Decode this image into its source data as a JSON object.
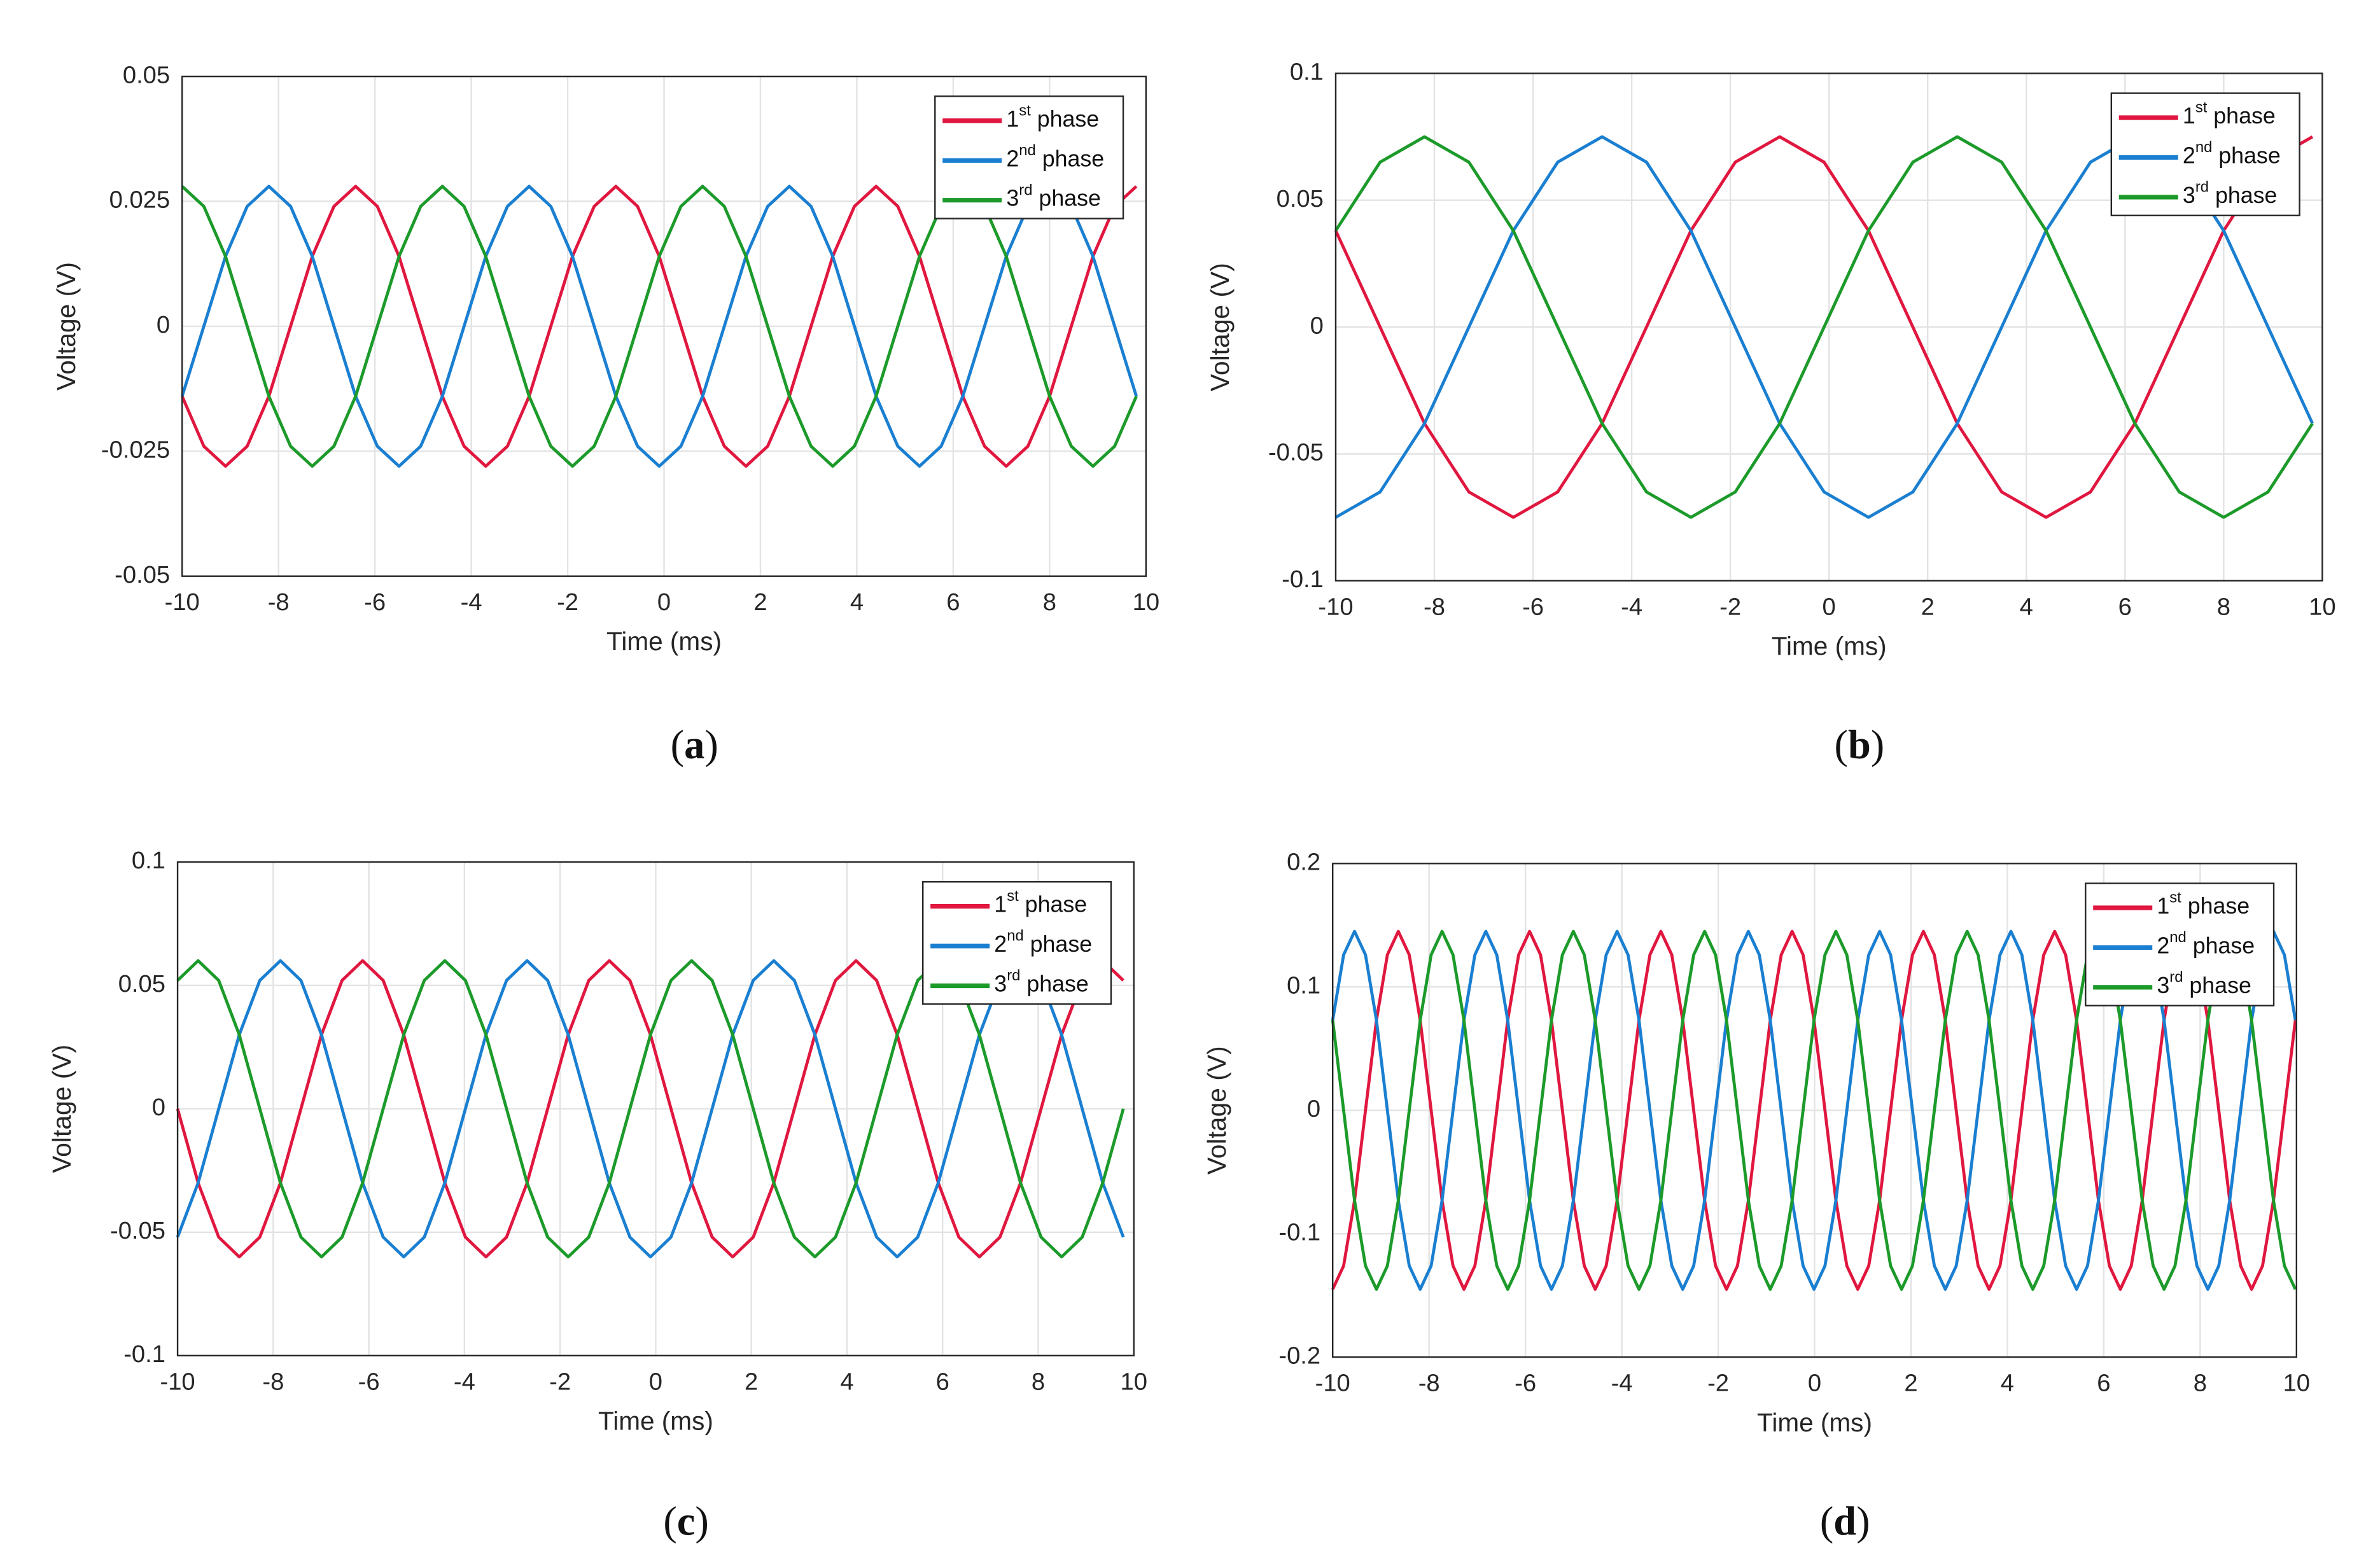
{
  "chart_data": [
    {
      "type": "line",
      "caption": "(a)",
      "xlabel": "Time (ms)",
      "ylabel": "Voltage (V)",
      "x": [
        -10,
        -9.55,
        -9.1,
        -8.65,
        -8.2,
        -7.75,
        -7.3,
        -6.85,
        -6.4,
        -5.95,
        -5.5,
        -5.05,
        -4.6,
        -4.15,
        -3.7,
        -3.25,
        -2.8,
        -2.35,
        -1.9,
        -1.45,
        -1,
        -0.55,
        -0.1,
        0.35,
        0.8,
        1.25,
        1.7,
        2.15,
        2.6,
        3.05,
        3.5,
        3.95,
        4.4,
        4.85,
        5.3,
        5.75,
        6.2,
        6.65,
        7.1,
        7.55,
        8,
        8.45,
        8.9,
        9.35,
        9.8
      ],
      "series": [
        {
          "name": "1st phase",
          "color": "#e0173f",
          "values": [
            -0.014,
            -0.024,
            -0.028,
            -0.024,
            -0.014,
            0,
            0.014,
            0.024,
            0.028,
            0.024,
            0.014,
            0,
            -0.014,
            -0.024,
            -0.028,
            -0.024,
            -0.014,
            0,
            0.014,
            0.024,
            0.028,
            0.024,
            0.014,
            0,
            -0.014,
            -0.024,
            -0.028,
            -0.024,
            -0.014,
            0,
            0.014,
            0.024,
            0.028,
            0.024,
            0.014,
            0,
            -0.014,
            -0.024,
            -0.028,
            -0.024,
            -0.014,
            0,
            0.014,
            0.024,
            0.028
          ]
        },
        {
          "name": "2nd phase",
          "color": "#1a7fd1",
          "values": [
            -0.014,
            0,
            0.014,
            0.024,
            0.028,
            0.024,
            0.014,
            0,
            -0.014,
            -0.024,
            -0.028,
            -0.024,
            -0.014,
            0,
            0.014,
            0.024,
            0.028,
            0.024,
            0.014,
            0,
            -0.014,
            -0.024,
            -0.028,
            -0.024,
            -0.014,
            0,
            0.014,
            0.024,
            0.028,
            0.024,
            0.014,
            0,
            -0.014,
            -0.024,
            -0.028,
            -0.024,
            -0.014,
            0,
            0.014,
            0.024,
            0.028,
            0.024,
            0.014,
            0,
            -0.014
          ]
        },
        {
          "name": "3rd phase",
          "color": "#1c9a2a",
          "values": [
            0.028,
            0.024,
            0.014,
            0,
            -0.014,
            -0.024,
            -0.028,
            -0.024,
            -0.014,
            0,
            0.014,
            0.024,
            0.028,
            0.024,
            0.014,
            0,
            -0.014,
            -0.024,
            -0.028,
            -0.024,
            -0.014,
            0,
            0.014,
            0.024,
            0.028,
            0.024,
            0.014,
            0,
            -0.014,
            -0.024,
            -0.028,
            -0.024,
            -0.014,
            0,
            0.014,
            0.024,
            0.028,
            0.024,
            0.014,
            0,
            -0.014,
            -0.024,
            -0.028,
            -0.024,
            -0.014
          ]
        }
      ],
      "xlim": [
        -10,
        10
      ],
      "ylim": [
        -0.05,
        0.05
      ],
      "xticks": [
        -10,
        -8,
        -6,
        -4,
        -2,
        0,
        2,
        4,
        6,
        8,
        10
      ],
      "yticks": [
        -0.05,
        -0.025,
        0,
        0.025,
        0.05
      ],
      "grid": true,
      "legend": "upper right"
    },
    {
      "type": "line",
      "caption": "(b)",
      "xlabel": "Time (ms)",
      "ylabel": "Voltage (V)",
      "x": [
        -10,
        -9.1,
        -8.2,
        -7.3,
        -6.4,
        -5.5,
        -4.6,
        -3.7,
        -2.8,
        -1.9,
        -1,
        -0.1,
        0.8,
        1.7,
        2.6,
        3.5,
        4.4,
        5.3,
        6.2,
        7.1,
        8,
        8.9,
        9.8
      ],
      "series": [
        {
          "name": "1st phase",
          "color": "#e0173f",
          "values": [
            0.038,
            0,
            -0.038,
            -0.065,
            -0.075,
            -0.065,
            -0.038,
            0,
            0.038,
            0.065,
            0.075,
            0.065,
            0.038,
            0,
            -0.038,
            -0.065,
            -0.075,
            -0.065,
            -0.038,
            0,
            0.038,
            0.065,
            0.075
          ]
        },
        {
          "name": "2nd phase",
          "color": "#1a7fd1",
          "values": [
            -0.075,
            -0.065,
            -0.038,
            0,
            0.038,
            0.065,
            0.075,
            0.065,
            0.038,
            0,
            -0.038,
            -0.065,
            -0.075,
            -0.065,
            -0.038,
            0,
            0.038,
            0.065,
            0.075,
            0.065,
            0.038,
            0,
            -0.038
          ]
        },
        {
          "name": "3rd phase",
          "color": "#1c9a2a",
          "values": [
            0.038,
            0.065,
            0.075,
            0.065,
            0.038,
            0,
            -0.038,
            -0.065,
            -0.075,
            -0.065,
            -0.038,
            0,
            0.038,
            0.065,
            0.075,
            0.065,
            0.038,
            0,
            -0.038,
            -0.065,
            -0.075,
            -0.065,
            -0.038
          ]
        }
      ],
      "xlim": [
        -10,
        10
      ],
      "ylim": [
        -0.1,
        0.1
      ],
      "xticks": [
        -10,
        -8,
        -6,
        -4,
        -2,
        0,
        2,
        4,
        6,
        8,
        10
      ],
      "yticks": [
        -0.1,
        -0.05,
        0,
        0.05,
        0.1
      ],
      "grid": true,
      "legend": "upper right"
    },
    {
      "type": "line",
      "caption": "(c)",
      "xlabel": "Time (ms)",
      "ylabel": "Voltage (V)",
      "x": [
        -10,
        -9.57,
        -9.14,
        -8.71,
        -8.28,
        -7.85,
        -7.42,
        -6.99,
        -6.56,
        -6.13,
        -5.7,
        -5.27,
        -4.84,
        -4.41,
        -3.98,
        -3.55,
        -3.12,
        -2.69,
        -2.26,
        -1.83,
        -1.4,
        -0.97,
        -0.54,
        -0.11,
        0.32,
        0.75,
        1.18,
        1.61,
        2.04,
        2.47,
        2.9,
        3.33,
        3.76,
        4.19,
        4.62,
        5.05,
        5.48,
        5.91,
        6.34,
        6.77,
        7.2,
        7.63,
        8.06,
        8.49,
        8.92,
        9.35,
        9.78
      ],
      "series": [
        {
          "name": "1st phase",
          "color": "#e0173f",
          "values": [
            0,
            -0.03,
            -0.052,
            -0.06,
            -0.052,
            -0.03,
            0,
            0.03,
            0.052,
            0.06,
            0.052,
            0.03,
            0,
            -0.03,
            -0.052,
            -0.06,
            -0.052,
            -0.03,
            0,
            0.03,
            0.052,
            0.06,
            0.052,
            0.03,
            0,
            -0.03,
            -0.052,
            -0.06,
            -0.052,
            -0.03,
            0,
            0.03,
            0.052,
            0.06,
            0.052,
            0.03,
            0,
            -0.03,
            -0.052,
            -0.06,
            -0.052,
            -0.03,
            0,
            0.03,
            0.052,
            0.06,
            0.052
          ]
        },
        {
          "name": "2nd phase",
          "color": "#1a7fd1",
          "values": [
            -0.052,
            -0.03,
            0,
            0.03,
            0.052,
            0.06,
            0.052,
            0.03,
            0,
            -0.03,
            -0.052,
            -0.06,
            -0.052,
            -0.03,
            0,
            0.03,
            0.052,
            0.06,
            0.052,
            0.03,
            0,
            -0.03,
            -0.052,
            -0.06,
            -0.052,
            -0.03,
            0,
            0.03,
            0.052,
            0.06,
            0.052,
            0.03,
            0,
            -0.03,
            -0.052,
            -0.06,
            -0.052,
            -0.03,
            0,
            0.03,
            0.052,
            0.06,
            0.052,
            0.03,
            0,
            -0.03,
            -0.052
          ]
        },
        {
          "name": "3rd phase",
          "color": "#1c9a2a",
          "values": [
            0.052,
            0.06,
            0.052,
            0.03,
            0,
            -0.03,
            -0.052,
            -0.06,
            -0.052,
            -0.03,
            0,
            0.03,
            0.052,
            0.06,
            0.052,
            0.03,
            0,
            -0.03,
            -0.052,
            -0.06,
            -0.052,
            -0.03,
            0,
            0.03,
            0.052,
            0.06,
            0.052,
            0.03,
            0,
            -0.03,
            -0.052,
            -0.06,
            -0.052,
            -0.03,
            0,
            0.03,
            0.052,
            0.06,
            0.052,
            0.03,
            0,
            -0.03,
            -0.052,
            -0.06,
            -0.052,
            -0.03,
            0
          ]
        }
      ],
      "xlim": [
        -10,
        10
      ],
      "ylim": [
        -0.1,
        0.1
      ],
      "xticks": [
        -10,
        -8,
        -6,
        -4,
        -2,
        0,
        2,
        4,
        6,
        8,
        10
      ],
      "yticks": [
        -0.1,
        -0.05,
        0,
        0.05,
        0.1
      ],
      "grid": true,
      "legend": "upper right"
    },
    {
      "type": "line",
      "caption": "(d)",
      "xlabel": "Time (ms)",
      "ylabel": "Voltage (V)",
      "x": [
        -10,
        -9.773,
        -9.546,
        -9.319,
        -9.092,
        -8.865,
        -8.638,
        -8.411,
        -8.184,
        -7.957,
        -7.73,
        -7.503,
        -7.276,
        -7.049,
        -6.822,
        -6.595,
        -6.368,
        -6.141,
        -5.914,
        -5.687,
        -5.46,
        -5.233,
        -5.006,
        -4.779,
        -4.552,
        -4.325,
        -4.098,
        -3.871,
        -3.644,
        -3.417,
        -3.19,
        -2.963,
        -2.736,
        -2.509,
        -2.282,
        -2.055,
        -1.828,
        -1.601,
        -1.374,
        -1.147,
        -0.92,
        -0.693,
        -0.466,
        -0.239,
        -0.012,
        0.215,
        0.442,
        0.669,
        0.896,
        1.123,
        1.35,
        1.577,
        1.804,
        2.031,
        2.258,
        2.485,
        2.712,
        2.939,
        3.166,
        3.393,
        3.62,
        3.847,
        4.074,
        4.301,
        4.528,
        4.755,
        4.982,
        5.209,
        5.436,
        5.663,
        5.89,
        6.117,
        6.344,
        6.571,
        6.798,
        7.025,
        7.252,
        7.479,
        7.706,
        7.933,
        8.16,
        8.387,
        8.614,
        8.841,
        9.068,
        9.295,
        9.522,
        9.749,
        9.976
      ],
      "series": [
        {
          "name": "1st phase",
          "color": "#e0173f",
          "values": [
            -0.145,
            -0.126,
            -0.073,
            0,
            0.073,
            0.126,
            0.145,
            0.126,
            0.073,
            0,
            -0.073,
            -0.126,
            -0.145,
            -0.126,
            -0.073,
            0,
            0.073,
            0.126,
            0.145,
            0.126,
            0.073,
            0,
            -0.073,
            -0.126,
            -0.145,
            -0.126,
            -0.073,
            0,
            0.073,
            0.126,
            0.145,
            0.126,
            0.073,
            0,
            -0.073,
            -0.126,
            -0.145,
            -0.126,
            -0.073,
            0,
            0.073,
            0.126,
            0.145,
            0.126,
            0.073,
            0,
            -0.073,
            -0.126,
            -0.145,
            -0.126,
            -0.073,
            0,
            0.073,
            0.126,
            0.145,
            0.126,
            0.073,
            0,
            -0.073,
            -0.126,
            -0.145,
            -0.126,
            -0.073,
            0,
            0.073,
            0.126,
            0.145,
            0.126,
            0.073,
            0,
            -0.073,
            -0.126,
            -0.145,
            -0.126,
            -0.073,
            0,
            0.073,
            0.126,
            0.145,
            0.126,
            0.073,
            0,
            -0.073,
            -0.126,
            -0.145,
            -0.126,
            -0.073,
            0,
            0.073
          ]
        },
        {
          "name": "2nd phase",
          "color": "#1a7fd1",
          "values": [
            0.073,
            0.126,
            0.145,
            0.126,
            0.073,
            0,
            -0.073,
            -0.126,
            -0.145,
            -0.126,
            -0.073,
            0,
            0.073,
            0.126,
            0.145,
            0.126,
            0.073,
            0,
            -0.073,
            -0.126,
            -0.145,
            -0.126,
            -0.073,
            0,
            0.073,
            0.126,
            0.145,
            0.126,
            0.073,
            0,
            -0.073,
            -0.126,
            -0.145,
            -0.126,
            -0.073,
            0,
            0.073,
            0.126,
            0.145,
            0.126,
            0.073,
            0,
            -0.073,
            -0.126,
            -0.145,
            -0.126,
            -0.073,
            0,
            0.073,
            0.126,
            0.145,
            0.126,
            0.073,
            0,
            -0.073,
            -0.126,
            -0.145,
            -0.126,
            -0.073,
            0,
            0.073,
            0.126,
            0.145,
            0.126,
            0.073,
            0,
            -0.073,
            -0.126,
            -0.145,
            -0.126,
            -0.073,
            0,
            0.073,
            0.126,
            0.145,
            0.126,
            0.073,
            0,
            -0.073,
            -0.126,
            -0.145,
            -0.126,
            -0.073,
            0,
            0.073,
            0.126,
            0.145,
            0.126,
            0.073
          ]
        },
        {
          "name": "3rd phase",
          "color": "#1c9a2a",
          "values": [
            0.073,
            0,
            -0.073,
            -0.126,
            -0.145,
            -0.126,
            -0.073,
            0,
            0.073,
            0.126,
            0.145,
            0.126,
            0.073,
            0,
            -0.073,
            -0.126,
            -0.145,
            -0.126,
            -0.073,
            0,
            0.073,
            0.126,
            0.145,
            0.126,
            0.073,
            0,
            -0.073,
            -0.126,
            -0.145,
            -0.126,
            -0.073,
            0,
            0.073,
            0.126,
            0.145,
            0.126,
            0.073,
            0,
            -0.073,
            -0.126,
            -0.145,
            -0.126,
            -0.073,
            0,
            0.073,
            0.126,
            0.145,
            0.126,
            0.073,
            0,
            -0.073,
            -0.126,
            -0.145,
            -0.126,
            -0.073,
            0,
            0.073,
            0.126,
            0.145,
            0.126,
            0.073,
            0,
            -0.073,
            -0.126,
            -0.145,
            -0.126,
            -0.073,
            0,
            0.073,
            0.126,
            0.145,
            0.126,
            0.073,
            0,
            -0.073,
            -0.126,
            -0.145,
            -0.126,
            -0.073,
            0,
            0.073,
            0.126,
            0.145,
            0.126,
            0.073,
            0,
            -0.073,
            -0.126,
            -0.145
          ]
        }
      ],
      "xlim": [
        -10,
        10
      ],
      "ylim": [
        -0.2,
        0.2
      ],
      "xticks": [
        -10,
        -8,
        -6,
        -4,
        -2,
        0,
        2,
        4,
        6,
        8,
        10
      ],
      "yticks": [
        -0.2,
        -0.1,
        0,
        0.1,
        0.2
      ],
      "grid": true,
      "legend": "upper right"
    }
  ]
}
